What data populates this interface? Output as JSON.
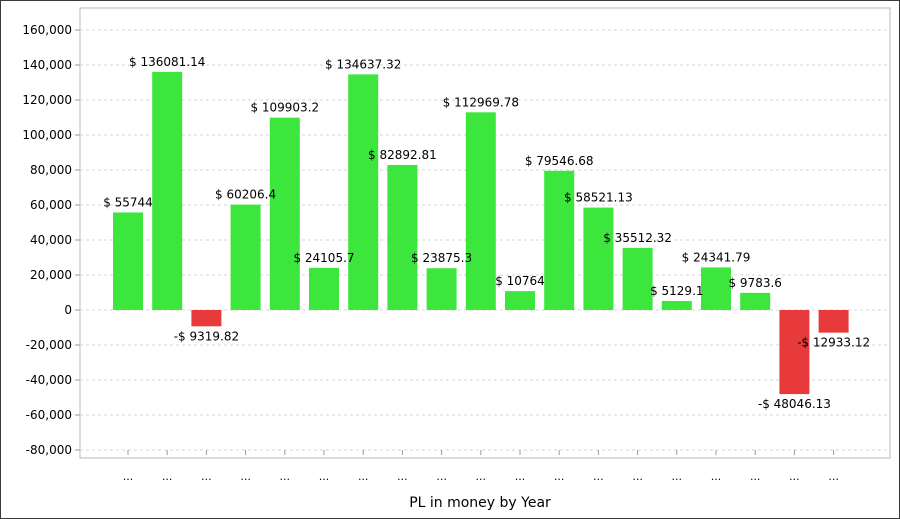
{
  "chart_data": {
    "type": "bar",
    "xlabel": "PL in money by Year",
    "ylabel": "",
    "ylim": [
      -80000,
      160000
    ],
    "yticks": [
      160000,
      140000,
      120000,
      100000,
      80000,
      60000,
      40000,
      20000,
      0,
      -20000,
      -40000,
      -60000,
      -80000
    ],
    "ytick_labels": [
      "160,000",
      "140,000",
      "120,000",
      "100,000",
      "80,000",
      "60,000",
      "40,000",
      "20,000",
      "0",
      "-20,000",
      "-40,000",
      "-60,000",
      "-80,000"
    ],
    "grid": true,
    "categories": [
      "...",
      "...",
      "...",
      "...",
      "...",
      "...",
      "...",
      "...",
      "...",
      "...",
      "...",
      "...",
      "...",
      "...",
      "...",
      "...",
      "...",
      "...",
      "..."
    ],
    "values": [
      55744,
      136081.14,
      -9319.82,
      60206.4,
      109903.2,
      24105.7,
      134637.32,
      82892.81,
      23875.3,
      112969.78,
      10764,
      79546.68,
      58521.13,
      35512.32,
      5129.1,
      24341.79,
      9783.6,
      -48046.13,
      -12933.12
    ],
    "data_labels": [
      "$ 55744",
      "$ 136081.14",
      "-$ 9319.82",
      "$ 60206.4",
      "$ 109903.2",
      "$ 24105.7",
      "$ 134637.32",
      "$ 82892.81",
      "$ 23875.3",
      "$ 112969.78",
      "$ 10764",
      "$ 79546.68",
      "$ 58521.13",
      "$ 35512.32",
      "$ 5129.1",
      "$ 24341.79",
      "$ 9783.6",
      "-$ 48046.13",
      "-$ 12933.12"
    ],
    "colors": {
      "positive": "#3de63d",
      "negative": "#e83a3a",
      "grid": "#d4d4d4",
      "axis": "#9a9a9a"
    }
  }
}
